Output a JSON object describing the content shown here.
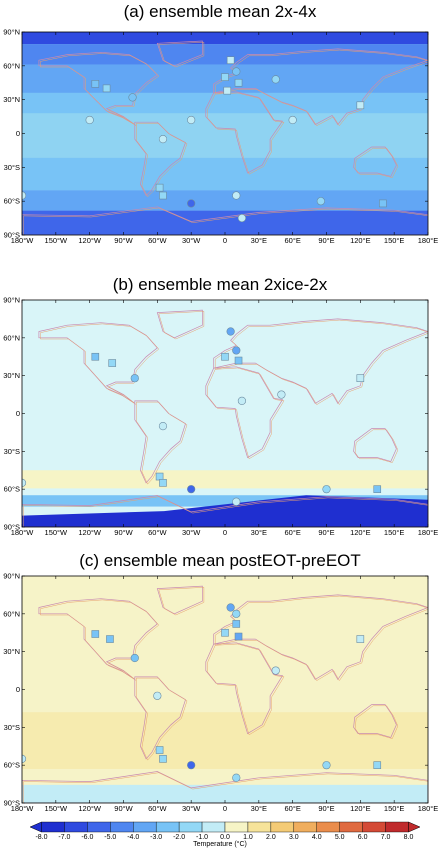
{
  "panels": [
    {
      "id": "a",
      "title": "(a) ensemble mean 2x-4x",
      "base_color": "#8fd3f2",
      "points": [
        {
          "lon": -115,
          "lat": 44,
          "kind": "square",
          "value": -3
        },
        {
          "lon": -105,
          "lat": 40,
          "kind": "square",
          "value": -2
        },
        {
          "lon": -82,
          "lat": 32,
          "kind": "circle",
          "value": -3
        },
        {
          "lon": -120,
          "lat": 12,
          "kind": "circle",
          "value": -1
        },
        {
          "lon": -30,
          "lat": 12,
          "kind": "circle",
          "value": -1
        },
        {
          "lon": -58,
          "lat": -48,
          "kind": "square",
          "value": -2
        },
        {
          "lon": -55,
          "lat": -55,
          "kind": "square",
          "value": -2
        },
        {
          "lon": -30,
          "lat": -62,
          "kind": "circle",
          "value": -6
        },
        {
          "lon": -55,
          "lat": -5,
          "kind": "circle",
          "value": -1
        },
        {
          "lon": 10,
          "lat": -55,
          "kind": "circle",
          "value": -1
        },
        {
          "lon": 15,
          "lat": -75,
          "kind": "circle",
          "value": -1
        },
        {
          "lon": 5,
          "lat": 65,
          "kind": "square",
          "value": -1
        },
        {
          "lon": 10,
          "lat": 55,
          "kind": "circle",
          "value": -3
        },
        {
          "lon": 0,
          "lat": 50,
          "kind": "square",
          "value": -2
        },
        {
          "lon": 12,
          "lat": 45,
          "kind": "square",
          "value": -2
        },
        {
          "lon": 2,
          "lat": 38,
          "kind": "square",
          "value": -1
        },
        {
          "lon": 45,
          "lat": 48,
          "kind": "circle",
          "value": -2
        },
        {
          "lon": 60,
          "lat": 12,
          "kind": "circle",
          "value": -1
        },
        {
          "lon": 120,
          "lat": 25,
          "kind": "square",
          "value": -1
        },
        {
          "lon": 85,
          "lat": -60,
          "kind": "circle",
          "value": -2
        },
        {
          "lon": 140,
          "lat": -62,
          "kind": "square",
          "value": -3
        },
        {
          "lon": -180,
          "lat": -55,
          "kind": "circle",
          "value": -1
        }
      ]
    },
    {
      "id": "b",
      "title": "(b) ensemble mean 2xice-2x",
      "base_color": "#d9f5f8",
      "points": [
        {
          "lon": -115,
          "lat": 45,
          "kind": "square",
          "value": -3
        },
        {
          "lon": -100,
          "lat": 40,
          "kind": "square",
          "value": -2
        },
        {
          "lon": -80,
          "lat": 28,
          "kind": "circle",
          "value": -3
        },
        {
          "lon": -55,
          "lat": -10,
          "kind": "circle",
          "value": -1
        },
        {
          "lon": -58,
          "lat": -50,
          "kind": "square",
          "value": -2
        },
        {
          "lon": -55,
          "lat": -55,
          "kind": "square",
          "value": -2
        },
        {
          "lon": -30,
          "lat": -60,
          "kind": "circle",
          "value": -6
        },
        {
          "lon": 10,
          "lat": -70,
          "kind": "circle",
          "value": -1
        },
        {
          "lon": 5,
          "lat": 65,
          "kind": "circle",
          "value": -4
        },
        {
          "lon": 10,
          "lat": 50,
          "kind": "circle",
          "value": -4
        },
        {
          "lon": 0,
          "lat": 45,
          "kind": "square",
          "value": -2
        },
        {
          "lon": 12,
          "lat": 42,
          "kind": "square",
          "value": -3
        },
        {
          "lon": 15,
          "lat": 10,
          "kind": "circle",
          "value": -1
        },
        {
          "lon": 50,
          "lat": 15,
          "kind": "circle",
          "value": -1
        },
        {
          "lon": 90,
          "lat": -60,
          "kind": "circle",
          "value": -2
        },
        {
          "lon": 135,
          "lat": -60,
          "kind": "square",
          "value": -3
        },
        {
          "lon": 120,
          "lat": 28,
          "kind": "square",
          "value": -1
        },
        {
          "lon": -180,
          "lat": -55,
          "kind": "circle",
          "value": -1
        }
      ]
    },
    {
      "id": "c",
      "title": "(c) ensemble mean postEOT-preEOT",
      "base_color": "#f6f3c8",
      "points": [
        {
          "lon": -115,
          "lat": 44,
          "kind": "square",
          "value": -3
        },
        {
          "lon": -102,
          "lat": 40,
          "kind": "square",
          "value": -3
        },
        {
          "lon": -80,
          "lat": 25,
          "kind": "circle",
          "value": -3
        },
        {
          "lon": -60,
          "lat": -5,
          "kind": "circle",
          "value": -1
        },
        {
          "lon": -58,
          "lat": -48,
          "kind": "square",
          "value": -2
        },
        {
          "lon": -55,
          "lat": -55,
          "kind": "square",
          "value": -2
        },
        {
          "lon": -30,
          "lat": -60,
          "kind": "circle",
          "value": -6
        },
        {
          "lon": 10,
          "lat": -70,
          "kind": "circle",
          "value": -2
        },
        {
          "lon": 5,
          "lat": 65,
          "kind": "circle",
          "value": -4
        },
        {
          "lon": 10,
          "lat": 52,
          "kind": "square",
          "value": -3
        },
        {
          "lon": 0,
          "lat": 45,
          "kind": "square",
          "value": -2
        },
        {
          "lon": 12,
          "lat": 42,
          "kind": "square",
          "value": -4
        },
        {
          "lon": 10,
          "lat": 60,
          "kind": "circle",
          "value": -2
        },
        {
          "lon": 45,
          "lat": 15,
          "kind": "circle",
          "value": -1
        },
        {
          "lon": 90,
          "lat": -60,
          "kind": "circle",
          "value": -2
        },
        {
          "lon": 135,
          "lat": -60,
          "kind": "square",
          "value": -2
        },
        {
          "lon": 120,
          "lat": 40,
          "kind": "square",
          "value": -1
        },
        {
          "lon": -180,
          "lat": -55,
          "kind": "circle",
          "value": -1
        }
      ]
    }
  ],
  "axes": {
    "lon_ticks": [
      {
        "v": -180,
        "label": "180°W"
      },
      {
        "v": -150,
        "label": "150°W"
      },
      {
        "v": -120,
        "label": "120°W"
      },
      {
        "v": -90,
        "label": "90°W"
      },
      {
        "v": -60,
        "label": "60°W"
      },
      {
        "v": -30,
        "label": "30°W"
      },
      {
        "v": 0,
        "label": "0"
      },
      {
        "v": 30,
        "label": "30°E"
      },
      {
        "v": 60,
        "label": "60°E"
      },
      {
        "v": 90,
        "label": "90°E"
      },
      {
        "v": 120,
        "label": "120°E"
      },
      {
        "v": 150,
        "label": "150°E"
      },
      {
        "v": 180,
        "label": "180°E"
      }
    ],
    "lat_ticks": [
      {
        "v": 90,
        "label": "90°N"
      },
      {
        "v": 60,
        "label": "60°N"
      },
      {
        "v": 30,
        "label": "30°N"
      },
      {
        "v": 0,
        "label": "0"
      },
      {
        "v": -30,
        "label": "30°S"
      },
      {
        "v": -60,
        "label": "60°S"
      },
      {
        "v": -90,
        "label": "90°S"
      }
    ]
  },
  "colorbar": {
    "title": "Temperature (°C)",
    "labels": [
      "-8.0",
      "-7.0",
      "-6.0",
      "-5.0",
      "-4.0",
      "-3.0",
      "-2.0",
      "-1.0",
      "0.0",
      "1.0",
      "2.0",
      "3.0",
      "4.0",
      "5.0",
      "6.0",
      "7.0",
      "8.0"
    ],
    "colors": [
      "#1f2fd0",
      "#2f4ae0",
      "#3f66ea",
      "#4f86f0",
      "#62a6f4",
      "#78c3f6",
      "#93d8f6",
      "#c2ecf6",
      "#f6f4c6",
      "#f6e39a",
      "#f4cb76",
      "#f0ae5e",
      "#ea8d4c",
      "#e06a40",
      "#d44a36",
      "#c02a2c"
    ]
  }
}
